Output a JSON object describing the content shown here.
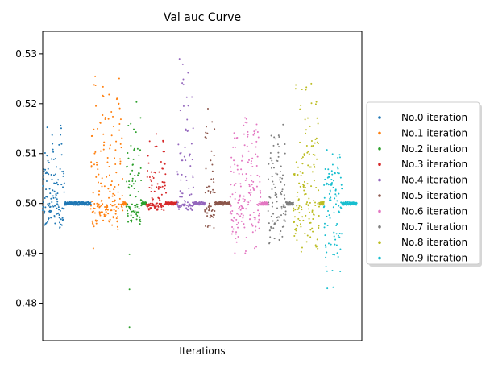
{
  "chart_data": {
    "type": "scatter",
    "title": "Val auc Curve",
    "xlabel": "Iterations",
    "ylabel": "",
    "ylim": [
      0.4725,
      0.5345
    ],
    "yticks": [
      0.48,
      0.49,
      0.5,
      0.51,
      0.52,
      0.53
    ],
    "ytick_labels": [
      "0.48",
      "0.49",
      "0.50",
      "0.51",
      "0.52",
      "0.53"
    ],
    "xticks_visible": false,
    "grid": false,
    "legend_position": "center-right-outside",
    "baseline": 0.5,
    "series": [
      {
        "name": "No.0 iteration",
        "color": "#1f77b4",
        "x_range": [
          0,
          38
        ],
        "amp_top": 0.5165,
        "amp_bottom": 0.4945,
        "active_fraction": 0.45,
        "baseline": 0.5
      },
      {
        "name": "No.1 iteration",
        "color": "#ff7f0e",
        "x_range": [
          38,
          66
        ],
        "amp_top": 0.527,
        "amp_bottom": 0.4945,
        "active_fraction": 0.9,
        "baseline": 0.5,
        "outliers": [
          [
            40,
            0.491
          ]
        ]
      },
      {
        "name": "No.2 iteration",
        "color": "#2ca02c",
        "x_range": [
          66,
          82
        ],
        "amp_top": 0.5222,
        "amp_bottom": 0.4955,
        "active_fraction": 0.75,
        "baseline": 0.5,
        "outliers": [
          [
            68.5,
            0.4752
          ],
          [
            68.5,
            0.4828
          ],
          [
            68.5,
            0.4898
          ]
        ]
      },
      {
        "name": "No.3 iteration",
        "color": "#d62728",
        "x_range": [
          82,
          106
        ],
        "amp_top": 0.514,
        "amp_bottom": 0.4985,
        "active_fraction": 0.65,
        "baseline": 0.5
      },
      {
        "name": "No.4 iteration",
        "color": "#9467bd",
        "x_range": [
          106,
          128
        ],
        "amp_top": 0.5315,
        "amp_bottom": 0.4985,
        "active_fraction": 0.6,
        "baseline": 0.5
      },
      {
        "name": "No.5 iteration",
        "color": "#8c564b",
        "x_range": [
          128,
          148
        ],
        "amp_top": 0.521,
        "amp_bottom": 0.4945,
        "active_fraction": 0.4,
        "baseline": 0.5
      },
      {
        "name": "No.6 iteration",
        "color": "#e377c2",
        "x_range": [
          148,
          178
        ],
        "amp_top": 0.5195,
        "amp_bottom": 0.49,
        "active_fraction": 0.8,
        "baseline": 0.5
      },
      {
        "name": "No.7 iteration",
        "color": "#7f7f7f",
        "x_range": [
          178,
          198
        ],
        "amp_top": 0.5172,
        "amp_bottom": 0.4895,
        "active_fraction": 0.7,
        "baseline": 0.5
      },
      {
        "name": "No.8 iteration",
        "color": "#bcbd22",
        "x_range": [
          198,
          222
        ],
        "amp_top": 0.5255,
        "amp_bottom": 0.4895,
        "active_fraction": 0.85,
        "baseline": 0.5
      },
      {
        "name": "No.9 iteration",
        "color": "#17becf",
        "x_range": [
          222,
          248
        ],
        "amp_top": 0.5115,
        "amp_bottom": 0.4825,
        "active_fraction": 0.55,
        "baseline": 0.5
      }
    ]
  }
}
